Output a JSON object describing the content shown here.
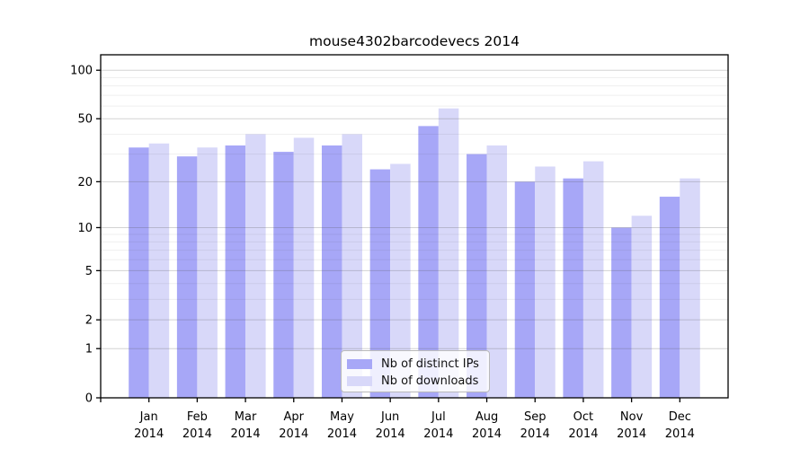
{
  "title": "mouse4302barcodevecs 2014",
  "chart_data": {
    "type": "bar",
    "title": "mouse4302barcodevecs 2014",
    "categories": [
      "Jan",
      "Feb",
      "Mar",
      "Apr",
      "May",
      "Jun",
      "Jul",
      "Aug",
      "Sep",
      "Oct",
      "Nov",
      "Dec"
    ],
    "year_label": "2014",
    "series": [
      {
        "name": "Nb of distinct IPs",
        "color": "#a7a7f7",
        "values": [
          33,
          29,
          34,
          31,
          34,
          24,
          45,
          30,
          20,
          21,
          10,
          16
        ]
      },
      {
        "name": "Nb of downloads",
        "color": "#d8d8f9",
        "values": [
          35,
          33,
          40,
          38,
          40,
          26,
          58,
          34,
          25,
          27,
          12,
          21
        ]
      }
    ],
    "yscale": "log10(1+x)",
    "yticks": [
      100,
      50,
      20,
      10,
      5,
      2,
      1,
      0
    ],
    "minor_yticks": [
      3,
      4,
      6,
      7,
      8,
      9,
      30,
      40,
      60,
      70,
      80,
      90
    ],
    "ylim": [
      0,
      125
    ],
    "xlabel": "",
    "ylabel": "",
    "grid": "both, drawn over bars",
    "legend_position": "bottom-center"
  },
  "colors": {
    "background": "#ffffff",
    "axis": "#000000",
    "major_grid": "rgba(80,80,80,0.25)",
    "minor_grid": "rgba(80,80,80,0.09)",
    "tick_label": "#000000"
  }
}
